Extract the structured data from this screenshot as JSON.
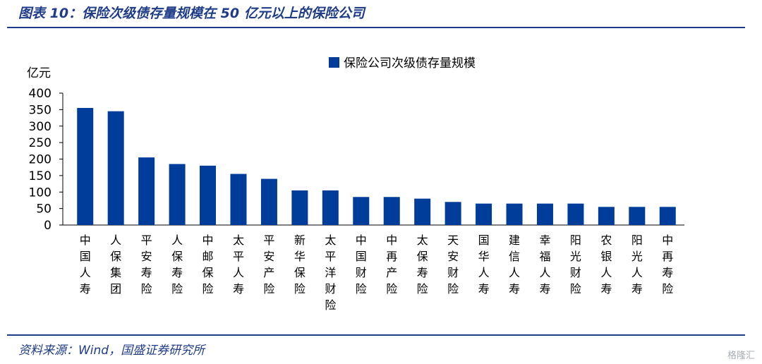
{
  "header": {
    "title": "图表 10：保险次级债存量规模在 50 亿元以上的保险公司"
  },
  "footer": {
    "source": "资料来源：Wind，国盛证券研究所",
    "watermark": "格隆汇"
  },
  "colors": {
    "bar": "#003c9a",
    "accent": "#1f3c88"
  },
  "chart_data": {
    "type": "bar",
    "title": "",
    "ylabel": "亿元",
    "xlabel": "",
    "ylim": [
      0,
      400
    ],
    "yticks": [
      0,
      50,
      100,
      150,
      200,
      250,
      300,
      350,
      400
    ],
    "grid": false,
    "legend_position": "top-center",
    "categories": [
      "中国人寿",
      "人保集团",
      "平安寿险",
      "人保寿险",
      "中邮保险",
      "太平人寿",
      "平安产险",
      "新华保险",
      "太平洋财险",
      "中国财险",
      "中再产险",
      "太保寿险",
      "天安财险",
      "国华人寿",
      "建信人寿",
      "幸福人寿",
      "阳光财险",
      "农银人寿",
      "阳光人寿",
      "中再寿险"
    ],
    "series": [
      {
        "name": "保险公司次级债存量规模",
        "values": [
          355,
          345,
          205,
          185,
          180,
          155,
          140,
          105,
          105,
          85,
          85,
          80,
          70,
          65,
          65,
          65,
          65,
          55,
          55,
          55
        ]
      }
    ]
  }
}
